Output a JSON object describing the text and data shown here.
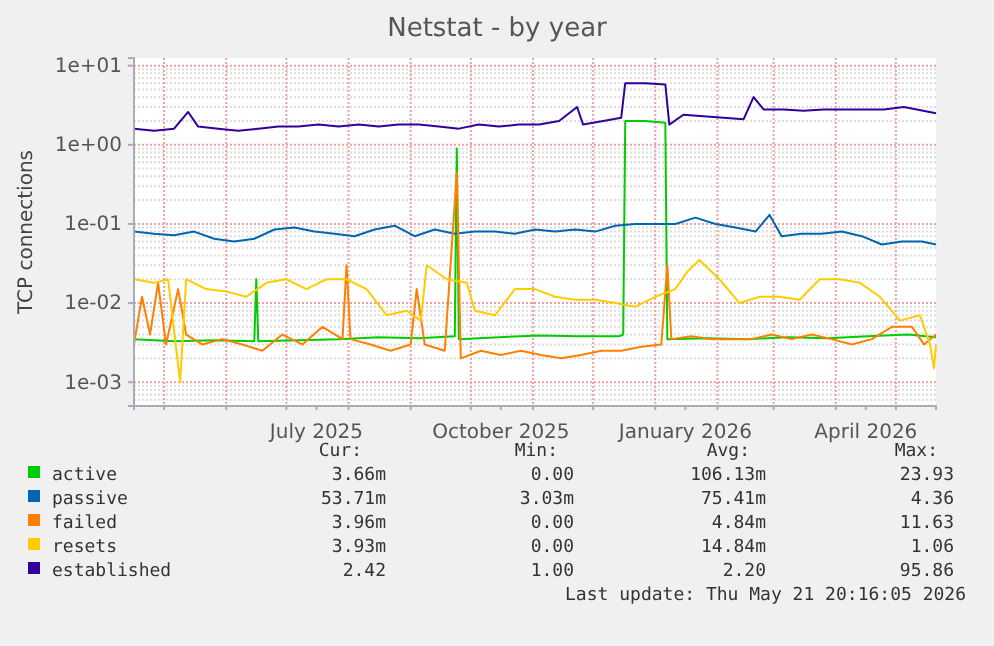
{
  "chart_data": {
    "type": "line",
    "title": "Netstat - by year",
    "ylabel": "TCP connections",
    "log": true,
    "grid": true,
    "legend": "bottom",
    "xlim": [
      "2025-04-16",
      "2026-05-21"
    ],
    "xticks": [
      {
        "value": "2025-05-01",
        "label": null
      },
      {
        "value": "2025-06-01",
        "label": null
      },
      {
        "value": "2025-07-01",
        "label": null
      },
      {
        "value": "2025-07-16",
        "label": "July 2025"
      },
      {
        "value": "2025-08-01",
        "label": null
      },
      {
        "value": "2025-09-01",
        "label": null
      },
      {
        "value": "2025-10-01",
        "label": null
      },
      {
        "value": "2025-10-16",
        "label": "October 2025"
      },
      {
        "value": "2025-11-01",
        "label": null
      },
      {
        "value": "2025-12-01",
        "label": null
      },
      {
        "value": "2026-01-01",
        "label": null
      },
      {
        "value": "2026-01-16",
        "label": "January 2026"
      },
      {
        "value": "2026-02-01",
        "label": null
      },
      {
        "value": "2026-03-01",
        "label": null
      },
      {
        "value": "2026-04-01",
        "label": null
      },
      {
        "value": "2026-04-16",
        "label": "April 2026"
      },
      {
        "value": "2026-05-01",
        "label": null
      }
    ],
    "ylim": [
      0.0005,
      12.5
    ],
    "yticks": [
      {
        "value": 0.001,
        "label": "1e-03"
      },
      {
        "value": 0.01,
        "label": "1e-02"
      },
      {
        "value": 0.1,
        "label": "1e-01"
      },
      {
        "value": 1,
        "label": "1e+00"
      },
      {
        "value": 10,
        "label": "1e+01"
      }
    ],
    "series": [
      {
        "name": "active",
        "color": "#00cc00",
        "x": [
          "2025-04-16",
          "2025-05-06",
          "2025-05-26",
          "2025-06-15",
          "2025-06-16",
          "2025-06-17",
          "2025-07-07",
          "2025-07-27",
          "2025-08-16",
          "2025-09-05",
          "2025-09-23",
          "2025-09-24",
          "2025-09-25",
          "2025-10-15",
          "2025-11-04",
          "2025-11-24",
          "2025-12-14",
          "2025-12-16",
          "2025-12-17",
          "2025-12-27",
          "2026-01-06",
          "2026-01-07",
          "2026-01-27",
          "2026-02-16",
          "2026-03-08",
          "2026-03-28",
          "2026-04-17",
          "2026-05-07",
          "2026-05-21"
        ],
        "values": [
          0.0035,
          0.0033,
          0.0034,
          0.0033,
          0.02,
          0.0033,
          0.0034,
          0.0035,
          0.0037,
          0.0036,
          0.0038,
          0.9,
          0.0035,
          0.0037,
          0.0039,
          0.0038,
          0.0038,
          0.004,
          2.0,
          2.0,
          1.9,
          0.0035,
          0.0036,
          0.0035,
          0.0037,
          0.0036,
          0.0038,
          0.004,
          0.0037
        ]
      },
      {
        "name": "passive",
        "color": "#0066b3",
        "x": [
          "2025-04-16",
          "2025-04-26",
          "2025-05-06",
          "2025-05-16",
          "2025-05-26",
          "2025-06-05",
          "2025-06-15",
          "2025-06-25",
          "2025-07-05",
          "2025-07-15",
          "2025-07-25",
          "2025-08-04",
          "2025-08-14",
          "2025-08-24",
          "2025-09-03",
          "2025-09-13",
          "2025-09-23",
          "2025-10-03",
          "2025-10-13",
          "2025-10-23",
          "2025-11-02",
          "2025-11-12",
          "2025-11-22",
          "2025-12-02",
          "2025-12-12",
          "2025-12-22",
          "2026-01-01",
          "2026-01-11",
          "2026-01-21",
          "2026-01-31",
          "2026-02-10",
          "2026-02-20",
          "2026-02-27",
          "2026-03-05",
          "2026-03-15",
          "2026-03-25",
          "2026-04-04",
          "2026-04-14",
          "2026-04-24",
          "2026-05-04",
          "2026-05-14",
          "2026-05-21"
        ],
        "values": [
          0.08,
          0.075,
          0.072,
          0.08,
          0.065,
          0.06,
          0.065,
          0.085,
          0.09,
          0.08,
          0.075,
          0.07,
          0.085,
          0.095,
          0.07,
          0.085,
          0.075,
          0.08,
          0.08,
          0.075,
          0.085,
          0.08,
          0.085,
          0.08,
          0.095,
          0.1,
          0.1,
          0.1,
          0.12,
          0.1,
          0.09,
          0.08,
          0.13,
          0.07,
          0.075,
          0.075,
          0.08,
          0.07,
          0.055,
          0.06,
          0.06,
          0.055
        ]
      },
      {
        "name": "failed",
        "color": "#ff8000",
        "x": [
          "2025-04-16",
          "2025-04-20",
          "2025-04-24",
          "2025-04-28",
          "2025-05-02",
          "2025-05-08",
          "2025-05-12",
          "2025-05-20",
          "2025-05-30",
          "2025-06-09",
          "2025-06-19",
          "2025-06-29",
          "2025-07-09",
          "2025-07-19",
          "2025-07-29",
          "2025-07-31",
          "2025-08-02",
          "2025-08-12",
          "2025-08-22",
          "2025-09-01",
          "2025-09-04",
          "2025-09-08",
          "2025-09-18",
          "2025-09-24",
          "2025-09-26",
          "2025-10-06",
          "2025-10-16",
          "2025-10-26",
          "2025-11-05",
          "2025-11-15",
          "2025-11-25",
          "2025-12-05",
          "2025-12-15",
          "2025-12-25",
          "2026-01-04",
          "2026-01-07",
          "2026-01-09",
          "2026-01-19",
          "2026-01-29",
          "2026-02-08",
          "2026-02-18",
          "2026-02-28",
          "2026-03-10",
          "2026-03-20",
          "2026-03-30",
          "2026-04-09",
          "2026-04-19",
          "2026-04-29",
          "2026-05-09",
          "2026-05-15",
          "2026-05-21"
        ],
        "values": [
          0.003,
          0.012,
          0.004,
          0.018,
          0.003,
          0.015,
          0.004,
          0.003,
          0.0035,
          0.003,
          0.0025,
          0.004,
          0.003,
          0.005,
          0.0035,
          0.03,
          0.0035,
          0.003,
          0.0025,
          0.003,
          0.015,
          0.003,
          0.0025,
          0.45,
          0.002,
          0.0025,
          0.0022,
          0.0025,
          0.0022,
          0.002,
          0.0022,
          0.0025,
          0.0025,
          0.0028,
          0.003,
          0.03,
          0.0035,
          0.0038,
          0.0035,
          0.0035,
          0.0035,
          0.004,
          0.0035,
          0.004,
          0.0035,
          0.003,
          0.0035,
          0.005,
          0.005,
          0.003,
          0.004
        ]
      },
      {
        "name": "resets",
        "color": "#ffcc00",
        "x": [
          "2025-04-16",
          "2025-04-26",
          "2025-05-03",
          "2025-05-09",
          "2025-05-12",
          "2025-05-22",
          "2025-06-01",
          "2025-06-11",
          "2025-06-21",
          "2025-07-01",
          "2025-07-11",
          "2025-07-21",
          "2025-07-31",
          "2025-08-10",
          "2025-08-20",
          "2025-08-30",
          "2025-09-06",
          "2025-09-09",
          "2025-09-19",
          "2025-09-29",
          "2025-10-03",
          "2025-10-13",
          "2025-10-23",
          "2025-11-02",
          "2025-11-12",
          "2025-11-22",
          "2025-12-02",
          "2025-12-12",
          "2025-12-22",
          "2026-01-01",
          "2026-01-11",
          "2026-01-17",
          "2026-01-23",
          "2026-02-02",
          "2026-02-12",
          "2026-02-22",
          "2026-03-04",
          "2026-03-14",
          "2026-03-24",
          "2026-04-03",
          "2026-04-13",
          "2026-04-23",
          "2026-05-03",
          "2026-05-13",
          "2026-05-18",
          "2026-05-20",
          "2026-05-21"
        ],
        "values": [
          0.02,
          0.018,
          0.02,
          0.001,
          0.02,
          0.015,
          0.014,
          0.012,
          0.018,
          0.02,
          0.015,
          0.02,
          0.02,
          0.015,
          0.007,
          0.008,
          0.006,
          0.03,
          0.02,
          0.018,
          0.008,
          0.007,
          0.015,
          0.015,
          0.012,
          0.011,
          0.011,
          0.01,
          0.009,
          0.012,
          0.015,
          0.025,
          0.035,
          0.02,
          0.01,
          0.012,
          0.012,
          0.011,
          0.02,
          0.02,
          0.018,
          0.012,
          0.006,
          0.007,
          0.003,
          0.0015,
          0.003
        ]
      },
      {
        "name": "established",
        "color": "#330099",
        "x": [
          "2025-04-16",
          "2025-04-26",
          "2025-05-06",
          "2025-05-13",
          "2025-05-18",
          "2025-05-28",
          "2025-06-07",
          "2025-06-17",
          "2025-06-27",
          "2025-07-07",
          "2025-07-17",
          "2025-07-27",
          "2025-08-06",
          "2025-08-16",
          "2025-08-26",
          "2025-09-05",
          "2025-09-15",
          "2025-09-25",
          "2025-10-05",
          "2025-10-15",
          "2025-10-25",
          "2025-11-04",
          "2025-11-14",
          "2025-11-23",
          "2025-11-26",
          "2025-12-06",
          "2025-12-15",
          "2025-12-17",
          "2025-12-27",
          "2026-01-06",
          "2026-01-08",
          "2026-01-15",
          "2026-01-25",
          "2026-02-04",
          "2026-02-14",
          "2026-02-19",
          "2026-02-24",
          "2026-03-06",
          "2026-03-16",
          "2026-03-26",
          "2026-04-05",
          "2026-04-15",
          "2026-04-25",
          "2026-05-05",
          "2026-05-21"
        ],
        "values": [
          1.6,
          1.5,
          1.6,
          2.6,
          1.7,
          1.6,
          1.5,
          1.6,
          1.7,
          1.7,
          1.8,
          1.7,
          1.8,
          1.7,
          1.8,
          1.8,
          1.7,
          1.6,
          1.8,
          1.7,
          1.8,
          1.8,
          2.0,
          3.0,
          1.8,
          2.0,
          2.2,
          6.0,
          6.0,
          5.8,
          1.8,
          2.4,
          2.3,
          2.2,
          2.1,
          4.0,
          2.8,
          2.8,
          2.7,
          2.8,
          2.8,
          2.8,
          2.8,
          3.0,
          2.5
        ]
      }
    ],
    "annotations": [
      "Cur:",
      "Min:",
      "Avg:",
      "Max:",
      "3.66m",
      "0.00",
      "106.13m",
      "23.93",
      "53.71m",
      "3.03m",
      "75.41m",
      "4.36",
      "3.96m",
      "0.00",
      "4.84m",
      "11.63",
      "3.93m",
      "0.00",
      "14.84m",
      "1.06",
      "2.42",
      "1.00",
      "2.20",
      "95.86",
      "Last update: Thu May 21 20:16:05 2026"
    ]
  }
}
